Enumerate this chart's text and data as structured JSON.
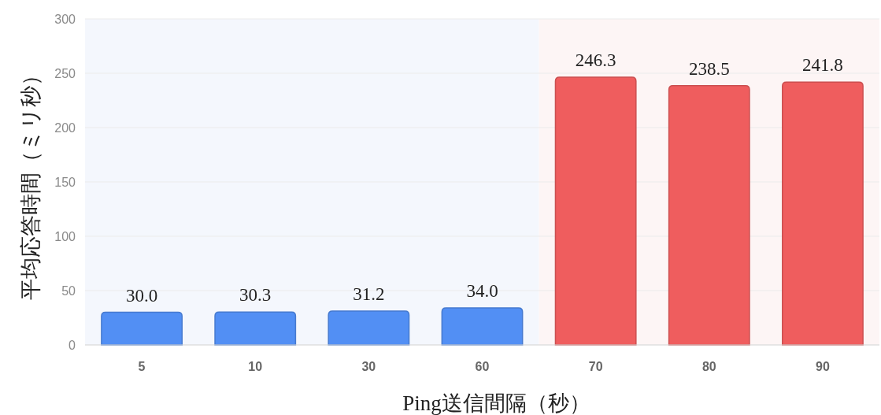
{
  "chart_data": {
    "type": "bar",
    "categories": [
      "5",
      "10",
      "30",
      "60",
      "70",
      "80",
      "90"
    ],
    "values": [
      30.0,
      30.3,
      31.2,
      34.0,
      246.3,
      238.5,
      241.8
    ],
    "colors": [
      "#528ff4",
      "#528ff4",
      "#528ff4",
      "#528ff4",
      "#ef5d5e",
      "#ef5d5e",
      "#ef5d5e"
    ],
    "value_labels": [
      "30.0",
      "30.3",
      "31.2",
      "34.0",
      "246.3",
      "238.5",
      "241.8"
    ],
    "xlabel": "Ping送信間隔（秒）",
    "ylabel": "平均応答時間（ミリ秒）",
    "ylim": [
      0,
      300
    ],
    "yticks": [
      0,
      50,
      100,
      150,
      200,
      250,
      300
    ],
    "grid": "y",
    "bands": [
      {
        "axis": "x",
        "from": "5",
        "to": "60",
        "color": "#f4f7fd"
      },
      {
        "axis": "x",
        "from": "70",
        "to": "90",
        "color": "#fdf5f5"
      }
    ]
  }
}
